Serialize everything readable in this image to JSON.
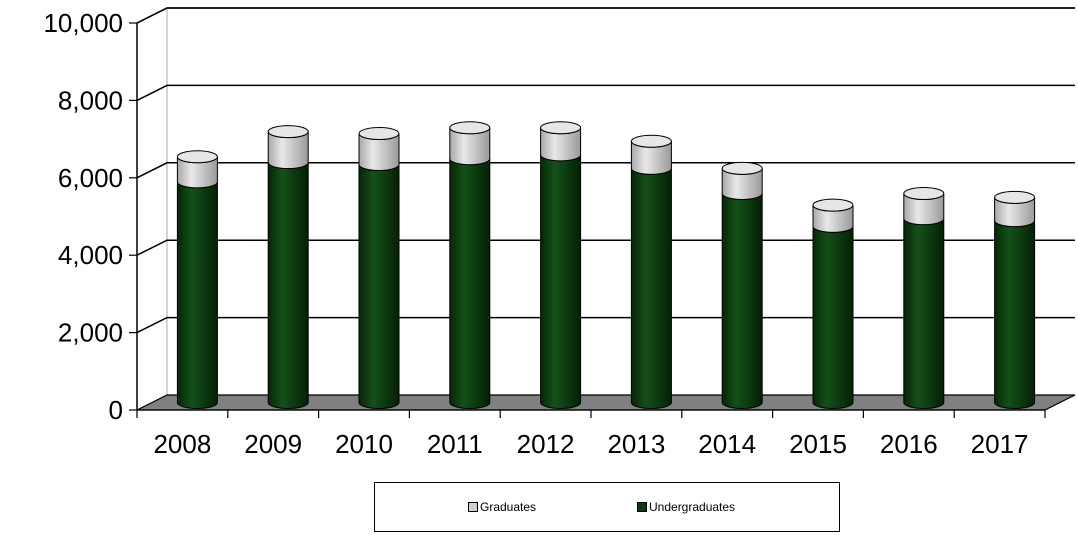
{
  "chart_data": {
    "type": "bar",
    "stacked": true,
    "style": "3d-cylinder",
    "categories": [
      "2008",
      "2009",
      "2010",
      "2011",
      "2012",
      "2013",
      "2014",
      "2015",
      "2016",
      "2017"
    ],
    "series": [
      {
        "name": "Undergraduates",
        "color": "#0d3b0d",
        "values": [
          5700,
          6200,
          6150,
          6300,
          6400,
          6050,
          5400,
          4550,
          4750,
          4700
        ]
      },
      {
        "name": "Graduates",
        "color": "#d0d0d0",
        "values": [
          650,
          800,
          800,
          800,
          700,
          700,
          650,
          550,
          650,
          600
        ]
      }
    ],
    "ylim": [
      0,
      10000
    ],
    "yticks": [
      "0",
      "2,000",
      "4,000",
      "6,000",
      "8,000",
      "10,000"
    ],
    "grid": true,
    "legend_position": "bottom",
    "floor_color": "#808080"
  }
}
